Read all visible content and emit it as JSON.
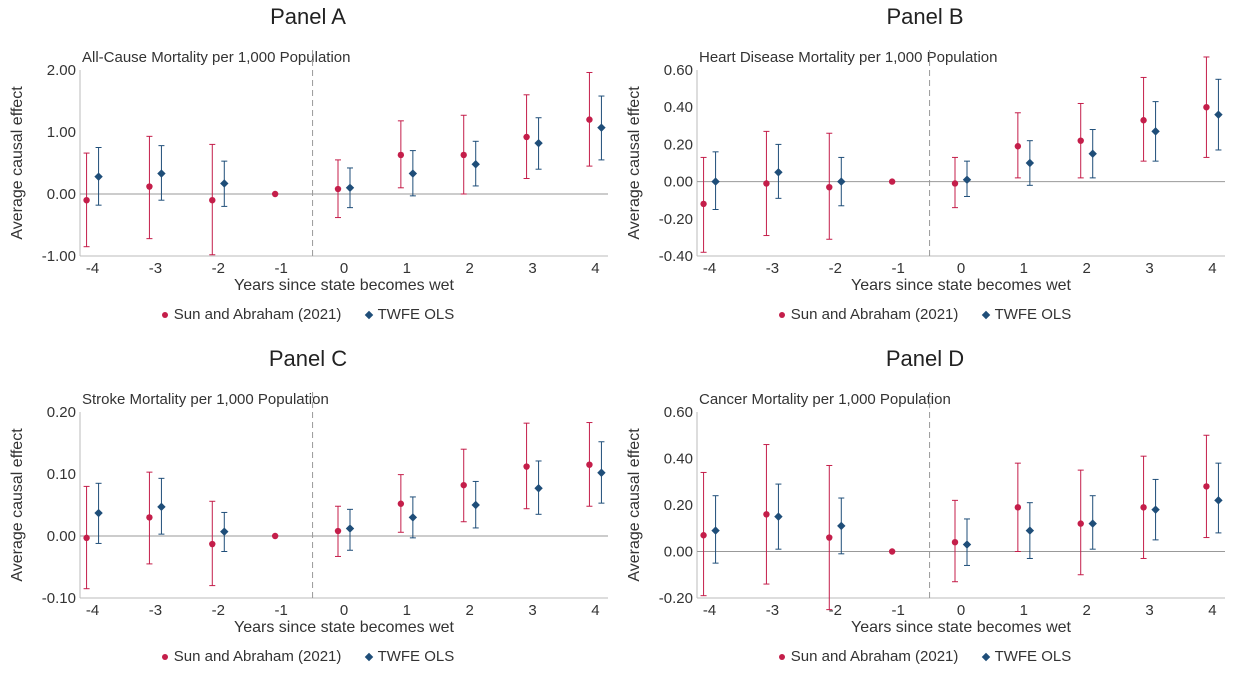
{
  "legend": {
    "sa_label": "Sun and Abraham (2021)",
    "twfe_label": "TWFE OLS",
    "sa_color": "#c41e4a",
    "twfe_color": "#1f4e79"
  },
  "chart_data": [
    {
      "panel": "Panel A",
      "type": "scatter",
      "title": "All-Cause Mortality per 1,000 Population",
      "xlabel": "Years since state becomes wet",
      "ylabel": "Average causal effect",
      "x": [
        -4,
        -3,
        -2,
        -1,
        0,
        1,
        2,
        3,
        4
      ],
      "xticks": [
        "-4",
        "-3",
        "-2",
        "-1",
        "0",
        "1",
        "2",
        "3",
        "4"
      ],
      "ylim": [
        -1.0,
        2.0
      ],
      "yticks": [
        -1.0,
        0.0,
        1.0,
        2.0
      ],
      "ytick_labels": [
        "-1.00",
        "0.00",
        "1.00",
        "2.00"
      ],
      "reference_line_x": -0.5,
      "series": [
        {
          "name": "Sun and Abraham (2021)",
          "marker": "circle",
          "values": [
            -0.1,
            0.12,
            -0.1,
            0.0,
            0.08,
            0.63,
            0.63,
            0.92,
            1.2
          ],
          "lower": [
            -0.85,
            -0.72,
            -0.98,
            0.0,
            -0.38,
            0.1,
            0.0,
            0.25,
            0.45
          ],
          "upper": [
            0.66,
            0.93,
            0.8,
            0.0,
            0.55,
            1.18,
            1.27,
            1.6,
            1.96
          ]
        },
        {
          "name": "TWFE OLS",
          "marker": "diamond",
          "values": [
            0.28,
            0.33,
            0.17,
            null,
            0.1,
            0.33,
            0.48,
            0.82,
            1.07
          ],
          "lower": [
            -0.18,
            -0.1,
            -0.2,
            null,
            -0.22,
            -0.03,
            0.13,
            0.4,
            0.55
          ],
          "upper": [
            0.75,
            0.78,
            0.53,
            null,
            0.42,
            0.7,
            0.85,
            1.23,
            1.58
          ]
        }
      ]
    },
    {
      "panel": "Panel B",
      "type": "scatter",
      "title": "Heart Disease Mortality per 1,000 Population",
      "xlabel": "Years since state becomes wet",
      "ylabel": "Average causal effect",
      "x": [
        -4,
        -3,
        -2,
        -1,
        0,
        1,
        2,
        3,
        4
      ],
      "xticks": [
        "-4",
        "-3",
        "-2",
        "-1",
        "0",
        "1",
        "2",
        "3",
        "4"
      ],
      "ylim": [
        -0.4,
        0.6
      ],
      "yticks": [
        -0.4,
        -0.2,
        0.0,
        0.2,
        0.4,
        0.6
      ],
      "ytick_labels": [
        "-0.40",
        "-0.20",
        "0.00",
        "0.20",
        "0.40",
        "0.60"
      ],
      "reference_line_x": -0.5,
      "series": [
        {
          "name": "Sun and Abraham (2021)",
          "marker": "circle",
          "values": [
            -0.12,
            -0.01,
            -0.03,
            0.0,
            -0.01,
            0.19,
            0.22,
            0.33,
            0.4
          ],
          "lower": [
            -0.38,
            -0.29,
            -0.31,
            0.0,
            -0.14,
            0.02,
            0.02,
            0.11,
            0.13
          ],
          "upper": [
            0.13,
            0.27,
            0.26,
            0.0,
            0.13,
            0.37,
            0.42,
            0.56,
            0.67
          ]
        },
        {
          "name": "TWFE OLS",
          "marker": "diamond",
          "values": [
            0.0,
            0.05,
            0.0,
            null,
            0.01,
            0.1,
            0.15,
            0.27,
            0.36
          ],
          "lower": [
            -0.15,
            -0.09,
            -0.13,
            null,
            -0.08,
            -0.02,
            0.02,
            0.11,
            0.17
          ],
          "upper": [
            0.16,
            0.2,
            0.13,
            null,
            0.11,
            0.22,
            0.28,
            0.43,
            0.55
          ]
        }
      ]
    },
    {
      "panel": "Panel C",
      "type": "scatter",
      "title": "Stroke Mortality per 1,000 Population",
      "xlabel": "Years since state becomes wet",
      "ylabel": "Average causal effect",
      "x": [
        -4,
        -3,
        -2,
        -1,
        0,
        1,
        2,
        3,
        4
      ],
      "xticks": [
        "-4",
        "-3",
        "-2",
        "-1",
        "0",
        "1",
        "2",
        "3",
        "4"
      ],
      "ylim": [
        -0.1,
        0.2
      ],
      "yticks": [
        -0.1,
        0.0,
        0.1,
        0.2
      ],
      "ytick_labels": [
        "-0.10",
        "0.00",
        "0.10",
        "0.20"
      ],
      "reference_line_x": -0.5,
      "series": [
        {
          "name": "Sun and Abraham (2021)",
          "marker": "circle",
          "values": [
            -0.003,
            0.03,
            -0.013,
            0.0,
            0.008,
            0.052,
            0.082,
            0.112,
            0.115
          ],
          "lower": [
            -0.085,
            -0.045,
            -0.08,
            0.0,
            -0.033,
            0.006,
            0.023,
            0.044,
            0.048
          ],
          "upper": [
            0.08,
            0.103,
            0.056,
            0.0,
            0.048,
            0.099,
            0.14,
            0.182,
            0.183
          ]
        },
        {
          "name": "TWFE OLS",
          "marker": "diamond",
          "values": [
            0.037,
            0.047,
            0.007,
            null,
            0.012,
            0.03,
            0.05,
            0.077,
            0.102
          ],
          "lower": [
            -0.012,
            0.003,
            -0.025,
            null,
            -0.023,
            -0.003,
            0.013,
            0.035,
            0.053
          ],
          "upper": [
            0.085,
            0.093,
            0.038,
            null,
            0.043,
            0.063,
            0.088,
            0.121,
            0.152
          ]
        }
      ]
    },
    {
      "panel": "Panel D",
      "type": "scatter",
      "title": "Cancer Mortality per 1,000 Population",
      "xlabel": "Years since state becomes wet",
      "ylabel": "Average causal effect",
      "x": [
        -4,
        -3,
        -2,
        -1,
        0,
        1,
        2,
        3,
        4
      ],
      "xticks": [
        "-4",
        "-3",
        "-2",
        "-1",
        "0",
        "1",
        "2",
        "3",
        "4"
      ],
      "ylim": [
        -0.2,
        0.6
      ],
      "yticks": [
        -0.2,
        0.0,
        0.2,
        0.4,
        0.6
      ],
      "ytick_labels": [
        "-0.20",
        "0.00",
        "0.20",
        "0.40",
        "0.60"
      ],
      "reference_line_x": -0.5,
      "series": [
        {
          "name": "Sun and Abraham (2021)",
          "marker": "circle",
          "values": [
            0.07,
            0.16,
            0.06,
            0.0,
            0.04,
            0.19,
            0.12,
            0.19,
            0.28
          ],
          "lower": [
            -0.19,
            -0.14,
            -0.25,
            0.0,
            -0.13,
            0.0,
            -0.1,
            -0.03,
            0.06
          ],
          "upper": [
            0.34,
            0.46,
            0.37,
            0.0,
            0.22,
            0.38,
            0.35,
            0.41,
            0.5
          ]
        },
        {
          "name": "TWFE OLS",
          "marker": "diamond",
          "values": [
            0.09,
            0.15,
            0.11,
            null,
            0.03,
            0.09,
            0.12,
            0.18,
            0.22
          ],
          "lower": [
            -0.05,
            0.01,
            -0.01,
            null,
            -0.06,
            -0.03,
            0.01,
            0.05,
            0.08
          ],
          "upper": [
            0.24,
            0.29,
            0.23,
            null,
            0.14,
            0.21,
            0.24,
            0.31,
            0.38
          ]
        }
      ]
    }
  ]
}
